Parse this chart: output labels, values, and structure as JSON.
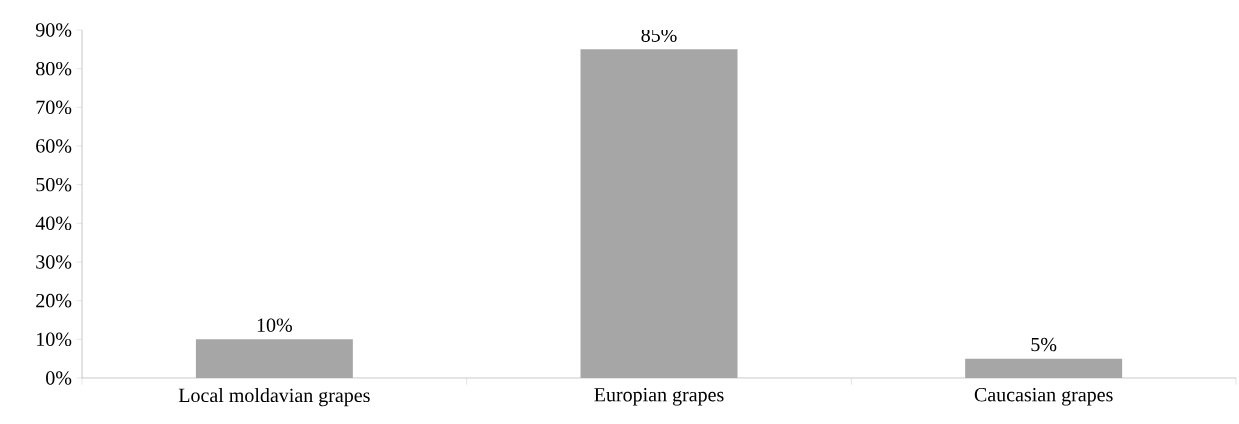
{
  "chart_data": {
    "type": "bar",
    "categories": [
      "Local moldavian grapes",
      "Europian grapes",
      "Caucasian grapes"
    ],
    "values": [
      10,
      85,
      5
    ],
    "value_labels": [
      "10%",
      "85%",
      "5%"
    ],
    "color": "#a6a6a6",
    "ylim": [
      0,
      90
    ],
    "yticks": [
      {
        "value": 0,
        "label": "0%"
      },
      {
        "value": 10,
        "label": "10%"
      },
      {
        "value": 20,
        "label": "20%"
      },
      {
        "value": 30,
        "label": "30%"
      },
      {
        "value": 40,
        "label": "40%"
      },
      {
        "value": 50,
        "label": "50%"
      },
      {
        "value": 60,
        "label": "60%"
      },
      {
        "value": 70,
        "label": "70%"
      },
      {
        "value": 80,
        "label": "80%"
      },
      {
        "value": 90,
        "label": "90%"
      }
    ],
    "grid": false
  }
}
